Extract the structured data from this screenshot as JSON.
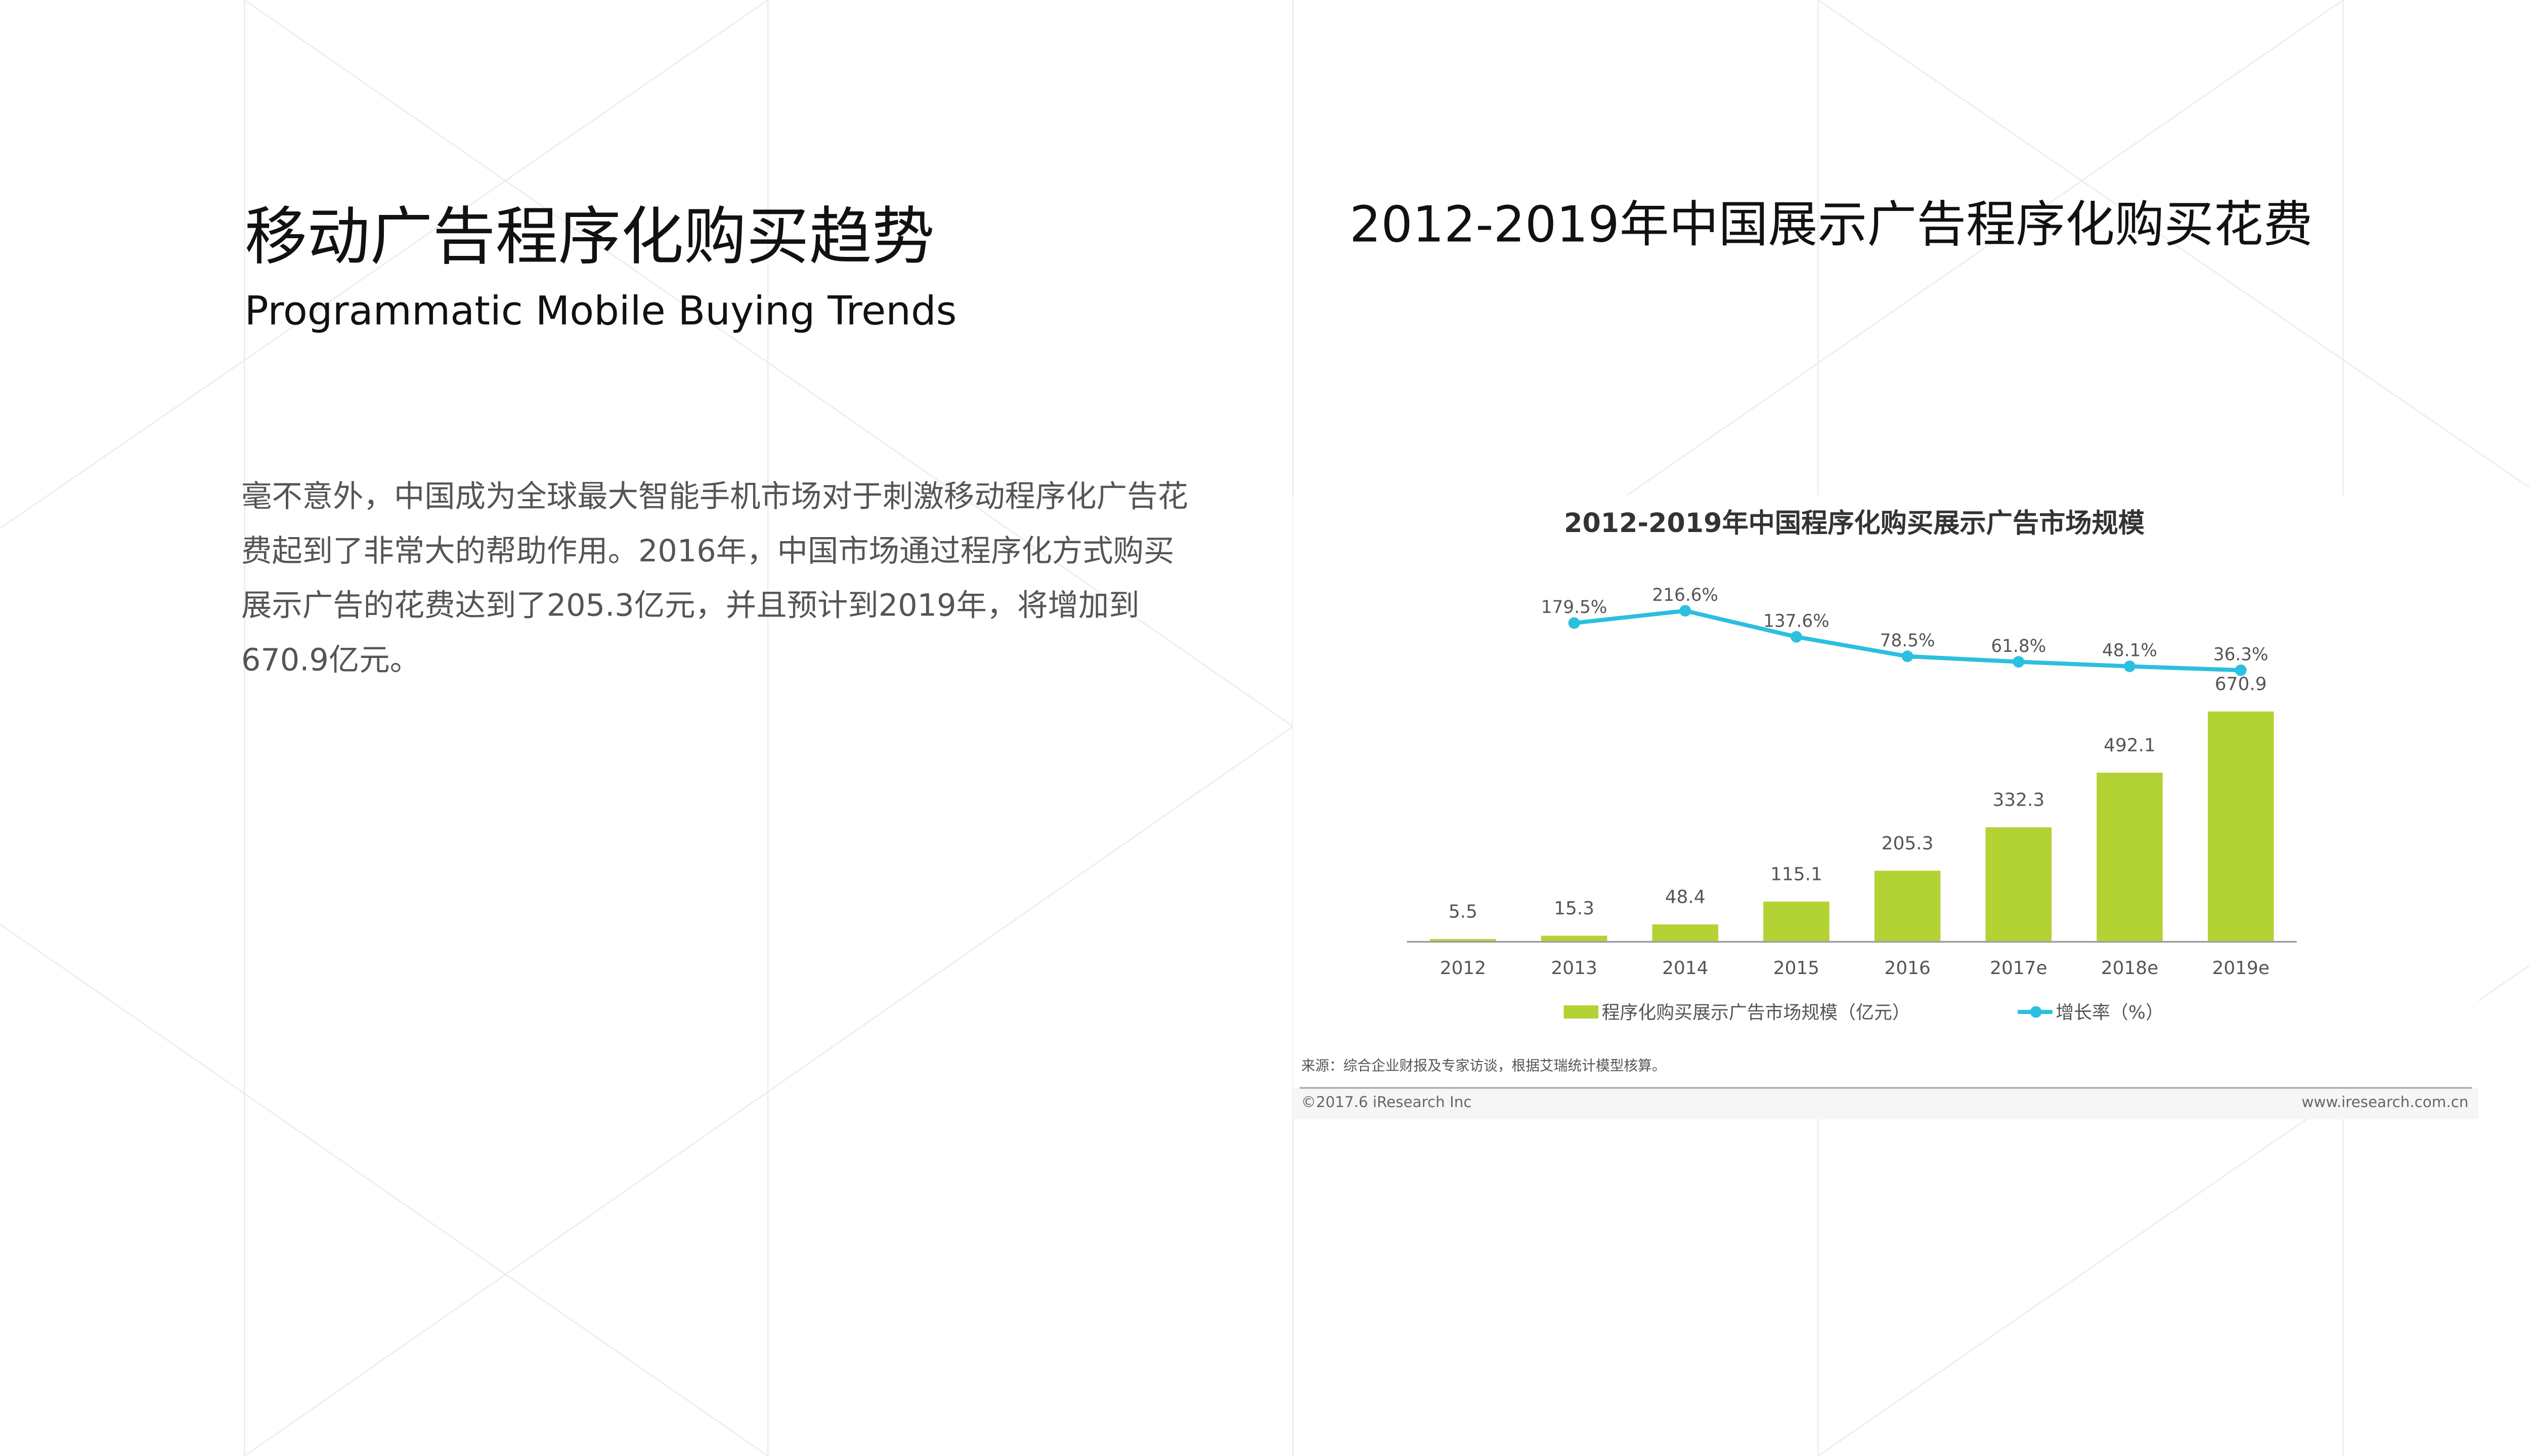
{
  "header": {
    "title": "移动广告程序化购买趋势",
    "subtitle": "Programmatic Mobile Buying Trends"
  },
  "body": "毫不意外，中国成为全球最大智能手机市场对于刺激移动程序化广告花费起到了非常大的帮助作用。2016年，中国市场通过程序化方式购买展示广告的花费达到了205.3亿元，并且预计到2019年，将增加到670.9亿元。",
  "chart_heading": "2012-2019年中国展示广告程序化购买花费",
  "chart_data": {
    "type": "bar",
    "title": "2012-2019年中国程序化购买展示广告市场规模",
    "categories": [
      "2012",
      "2013",
      "2014",
      "2015",
      "2016",
      "2017e",
      "2018e",
      "2019e"
    ],
    "series": [
      {
        "name": "程序化购买展示广告市场规模（亿元）",
        "color": "#b3d234",
        "type": "bar",
        "values": [
          5.5,
          15.3,
          48.4,
          115.1,
          205.3,
          332.3,
          492.1,
          670.9
        ]
      },
      {
        "name": "增长率（%）",
        "color": "#2bbfe0",
        "type": "line",
        "values": [
          null,
          179.5,
          216.6,
          137.6,
          78.5,
          61.8,
          48.1,
          36.3
        ],
        "value_labels": [
          null,
          "179.5%",
          "216.6%",
          "137.6%",
          "78.5%",
          "61.8%",
          "48.1%",
          "36.3%"
        ]
      }
    ],
    "source": "来源：综合企业财报及专家访谈，根据艾瑞统计模型核算。",
    "copyright": "©2017.6 iResearch Inc",
    "website": "www.iresearch.com.cn"
  }
}
